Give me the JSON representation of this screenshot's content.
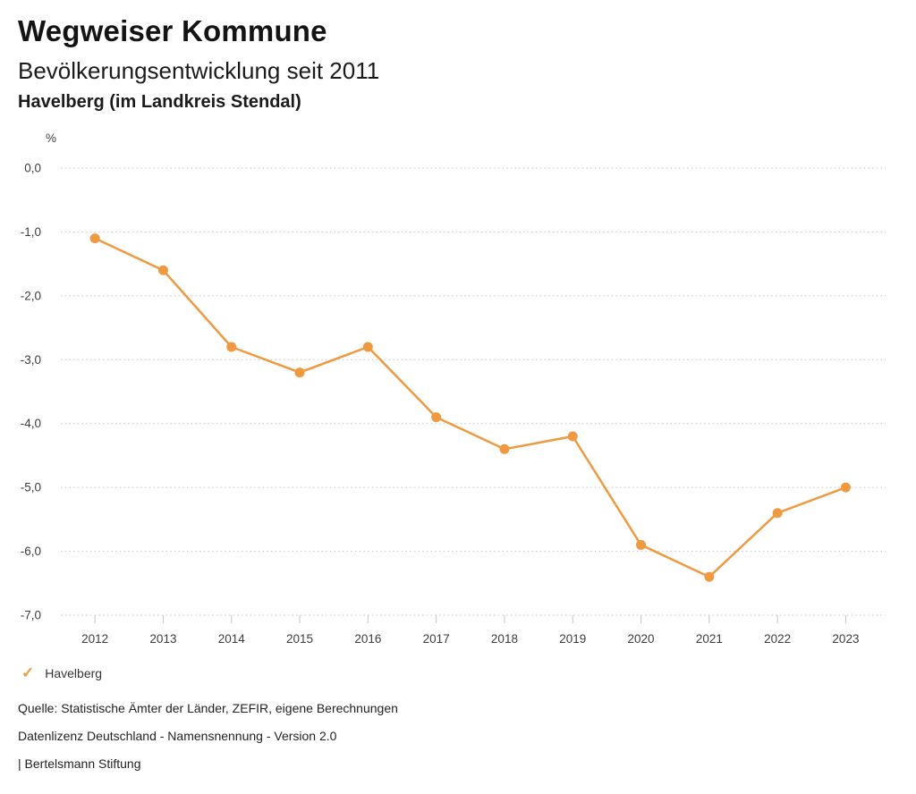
{
  "header": {
    "title": "Wegweiser Kommune",
    "subtitle": "Bevölkerungsentwicklung seit 2011",
    "region": "Havelberg (im Landkreis Stendal)"
  },
  "chart_data": {
    "type": "line",
    "title": "Bevölkerungsentwicklung seit 2011",
    "categories": [
      "2012",
      "2013",
      "2014",
      "2015",
      "2016",
      "2017",
      "2018",
      "2019",
      "2020",
      "2021",
      "2022",
      "2023"
    ],
    "series": [
      {
        "name": "Havelberg",
        "values": [
          -1.1,
          -1.6,
          -2.8,
          -3.2,
          -2.8,
          -3.9,
          -4.4,
          -4.2,
          -5.9,
          -6.4,
          -5.4,
          -5.0
        ],
        "color": "#EF9941"
      }
    ],
    "xlabel": "",
    "ylabel": "%",
    "ylim": [
      -7.0,
      0.0
    ],
    "ytick_step": 1.0,
    "ytick_labels": [
      "0,0",
      "-1,0",
      "-2,0",
      "-3,0",
      "-4,0",
      "-5,0",
      "-6,0",
      "-7,0"
    ],
    "grid": "horizontal dotted",
    "legend_position": "bottom-left"
  },
  "legend": {
    "items": [
      {
        "label": "Havelberg",
        "symbol": "check",
        "color": "#EF9941"
      }
    ]
  },
  "footer": {
    "source": "Quelle: Statistische Ämter der Länder, ZEFIR, eigene Berechnungen",
    "license": "Datenlizenz Deutschland - Namensnennung - Version 2.0",
    "publisher": "| Bertelsmann Stiftung"
  },
  "colors": {
    "series": "#EF9941",
    "grid": "#c4c4c4",
    "axis_text": "#3c3c3c",
    "title_text": "#141414",
    "footer_text": "#222222"
  }
}
